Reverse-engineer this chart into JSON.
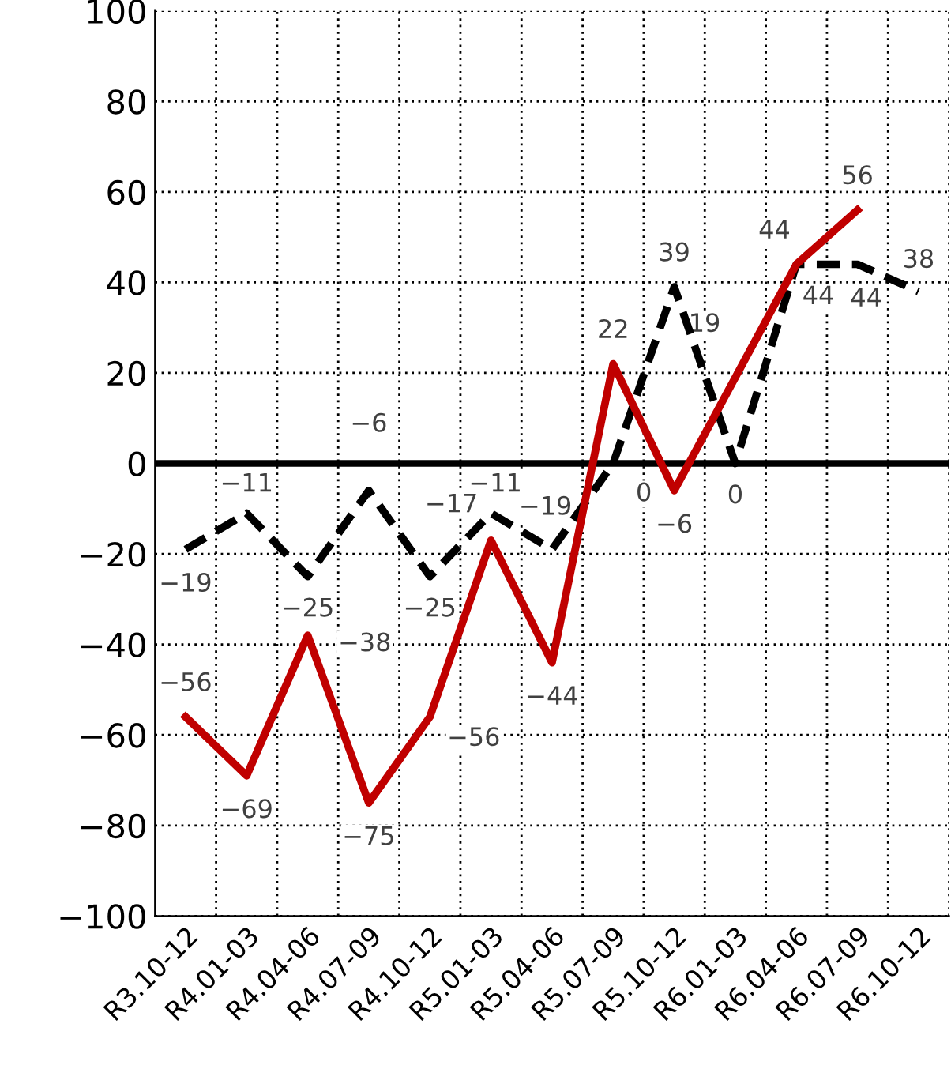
{
  "chart_data": {
    "type": "line",
    "categories": [
      "R3.10-12",
      "R4.01-03",
      "R4.04-06",
      "R4.07-09",
      "R4.10-12",
      "R5.01-03",
      "R5.04-06",
      "R5.07-09",
      "R5.10-12",
      "R6.01-03",
      "R6.04-06",
      "R6.07-09",
      "R6.10-12"
    ],
    "series": [
      {
        "color": "#000000",
        "line_style": "dashed",
        "values": [
          -19,
          -11,
          -25,
          -6,
          -25,
          -11,
          -19,
          0,
          39,
          0,
          44,
          44,
          38
        ]
      },
      {
        "color": "#c00000",
        "line_style": "solid",
        "values": [
          -56,
          -69,
          -38,
          -75,
          -56,
          -17,
          -44,
          22,
          -6,
          19,
          44,
          56,
          null
        ]
      }
    ],
    "ylim": [
      -100,
      100
    ],
    "yticks": [
      -100,
      -80,
      -60,
      -40,
      -20,
      0,
      20,
      40,
      60,
      80,
      100
    ],
    "grid": true,
    "marker": "none",
    "data_labels": true,
    "ref_lines": [
      {
        "axis": "y",
        "value": 0,
        "color": "#000000",
        "line_style": "solid"
      }
    ]
  }
}
